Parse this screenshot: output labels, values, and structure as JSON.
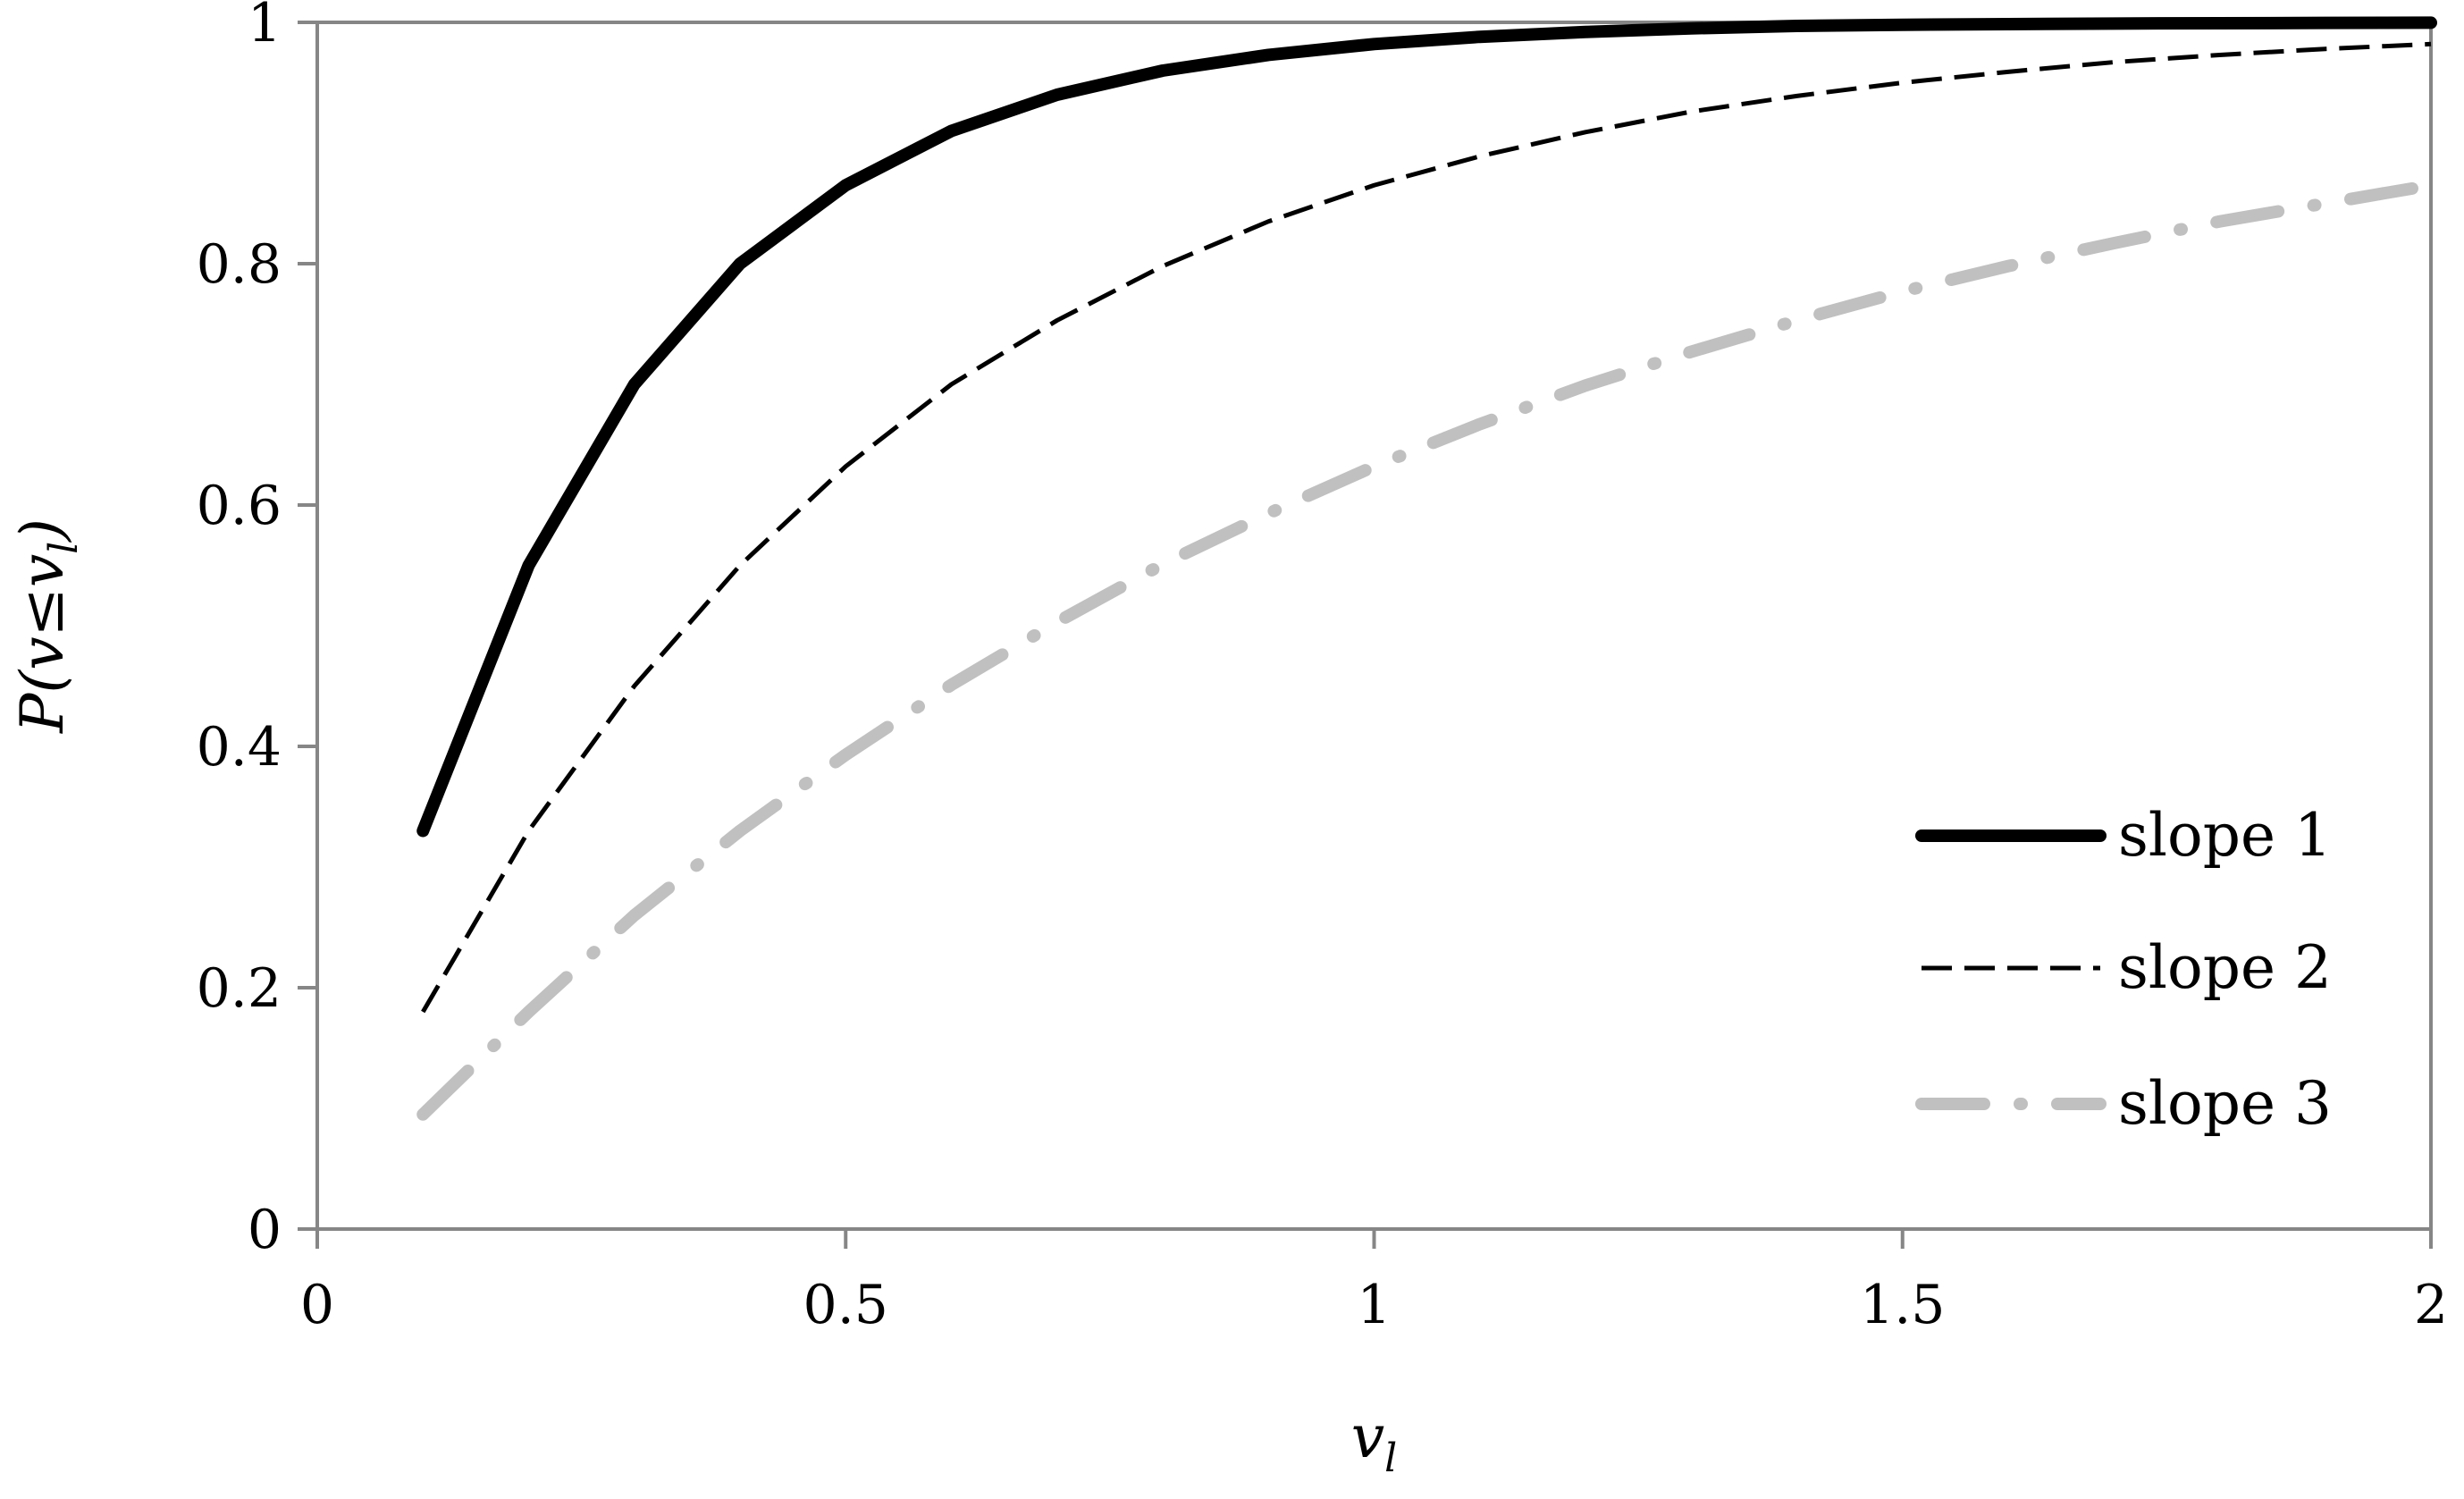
{
  "chart_data": {
    "type": "line",
    "xlabel": "v_l",
    "ylabel": "P(v≤v_l)",
    "xlim": [
      0,
      2
    ],
    "ylim": [
      0,
      1
    ],
    "x_ticks": [
      "0",
      "0.5",
      "1",
      "1.5",
      "2"
    ],
    "y_ticks": [
      "0",
      "0.2",
      "0.4",
      "0.6",
      "0.8",
      "1"
    ],
    "grid": false,
    "legend_position": "bottom-right",
    "x": [
      0.1,
      0.2,
      0.3,
      0.4,
      0.5,
      0.6,
      0.7,
      0.8,
      0.9,
      1.0,
      1.1,
      1.2,
      1.3,
      1.4,
      1.5,
      1.6,
      1.7,
      1.8,
      1.9,
      2.0
    ],
    "series": [
      {
        "name": "slope 1",
        "color": "#000000",
        "style": "solid-thick",
        "values": [
          0.33,
          0.55,
          0.7,
          0.8,
          0.865,
          0.91,
          0.94,
          0.96,
          0.973,
          0.982,
          0.988,
          0.992,
          0.995,
          0.997,
          0.998,
          0.9985,
          0.999,
          0.9993,
          0.9995,
          0.9997
        ]
      },
      {
        "name": "slope 2",
        "color": "#000000",
        "style": "dashed-thin",
        "values": [
          0.18,
          0.33,
          0.45,
          0.55,
          0.632,
          0.7,
          0.753,
          0.798,
          0.835,
          0.865,
          0.889,
          0.909,
          0.926,
          0.939,
          0.95,
          0.959,
          0.967,
          0.973,
          0.978,
          0.982
        ]
      },
      {
        "name": "slope 3",
        "color": "#c0c0c0",
        "style": "dash-dot-thick",
        "values": [
          0.095,
          0.18,
          0.26,
          0.33,
          0.393,
          0.451,
          0.503,
          0.551,
          0.593,
          0.632,
          0.667,
          0.699,
          0.727,
          0.753,
          0.777,
          0.798,
          0.817,
          0.835,
          0.85,
          0.865
        ]
      }
    ]
  }
}
